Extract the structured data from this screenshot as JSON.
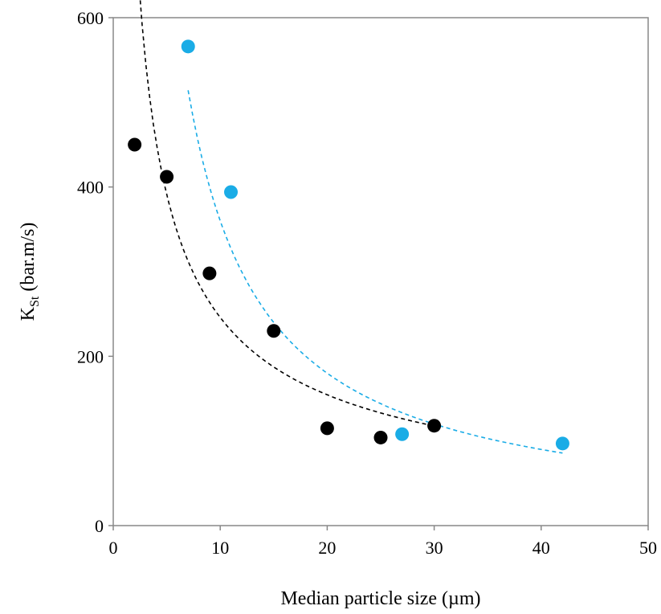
{
  "chart_data": {
    "type": "scatter",
    "title": "",
    "xlabel": "Median particle size (µm)",
    "ylabel_main": "K",
    "ylabel_sub": "St",
    "ylabel_rest": " (bar.m/s)",
    "xlim": [
      0,
      50
    ],
    "ylim": [
      0,
      600
    ],
    "xticks": [
      0,
      10,
      20,
      30,
      40,
      50
    ],
    "yticks": [
      0,
      200,
      400,
      600
    ],
    "grid": false,
    "legend": false,
    "series": [
      {
        "color": "#000000",
        "points": [
          [
            2,
            450
          ],
          [
            5,
            412
          ],
          [
            9,
            298
          ],
          [
            15,
            230
          ],
          [
            20,
            115
          ],
          [
            25,
            104
          ],
          [
            30,
            118
          ]
        ],
        "trendline": {
          "type": "power",
          "x_range": [
            2,
            30
          ],
          "a": 1150,
          "b": -0.67
        }
      },
      {
        "color": "#1aace6",
        "points": [
          [
            7,
            566
          ],
          [
            11,
            394
          ],
          [
            27,
            108
          ],
          [
            42,
            97
          ]
        ],
        "trendline": {
          "type": "power",
          "x_range": [
            7,
            42
          ],
          "a": 3600,
          "b": -1.0
        }
      }
    ]
  }
}
